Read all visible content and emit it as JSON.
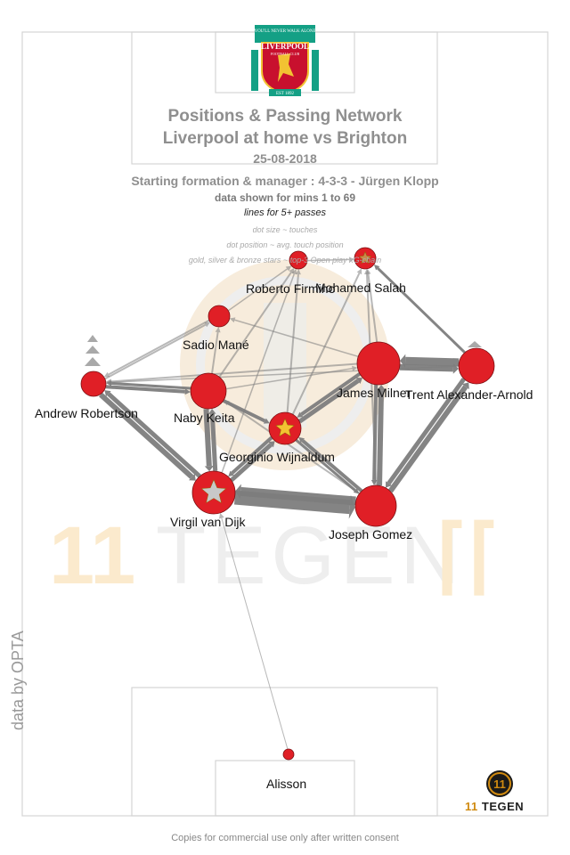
{
  "header": {
    "title_line1": "Positions & Passing Network",
    "title_line2": "Liverpool at home vs Brighton",
    "date": "25-08-2018",
    "formation": "Starting formation & manager : 4-3-3 - Jürgen Klopp",
    "minutes": "data shown for mins 1 to 69",
    "lines_note": "lines for 5+ passes",
    "legend_dot_size": "dot size ~ touches",
    "legend_dot_position": "dot position ~ avg. touch position",
    "legend_stars": "gold, silver & bronze stars ~ top-3 Open play xG-chain"
  },
  "crest": {
    "motto": "YOU'LL NEVER WALK ALONE",
    "name": "LIVERPOOL",
    "subname": "FOOTBALL CLUB",
    "est": "EST 1892"
  },
  "players": [
    {
      "id": "firmino",
      "name": "Roberto Firmino"
    },
    {
      "id": "salah",
      "name": "Mohamed Salah"
    },
    {
      "id": "mane",
      "name": "Sadio Mané"
    },
    {
      "id": "milner",
      "name": "James Milner"
    },
    {
      "id": "taa",
      "name": "Trent Alexander-Arnold"
    },
    {
      "id": "robertson",
      "name": "Andrew Robertson"
    },
    {
      "id": "keita",
      "name": "Naby Keita"
    },
    {
      "id": "wijnaldum",
      "name": "Georginio Wijnaldum"
    },
    {
      "id": "vvd",
      "name": "Virgil van Dijk"
    },
    {
      "id": "gomez",
      "name": "Joseph Gomez"
    },
    {
      "id": "alisson",
      "name": "Alisson"
    }
  ],
  "colors": {
    "node_fill": "#e01f26",
    "node_stroke": "#7a0f12",
    "edge": "#7d7d7d",
    "star_gold": "#f2c232",
    "star_silver": "#c8c8c8",
    "star_bronze": "#c98a4b",
    "watermark": "#f2f2f2",
    "watermark_accent": "#fbe8c8"
  },
  "watermark_text": "TEGEN",
  "watermark_number": "11",
  "data_credit": "data by OPTA",
  "footer": "Copies for commercial use only after written consent",
  "brand": {
    "number": "11",
    "name": "TEGEN"
  }
}
